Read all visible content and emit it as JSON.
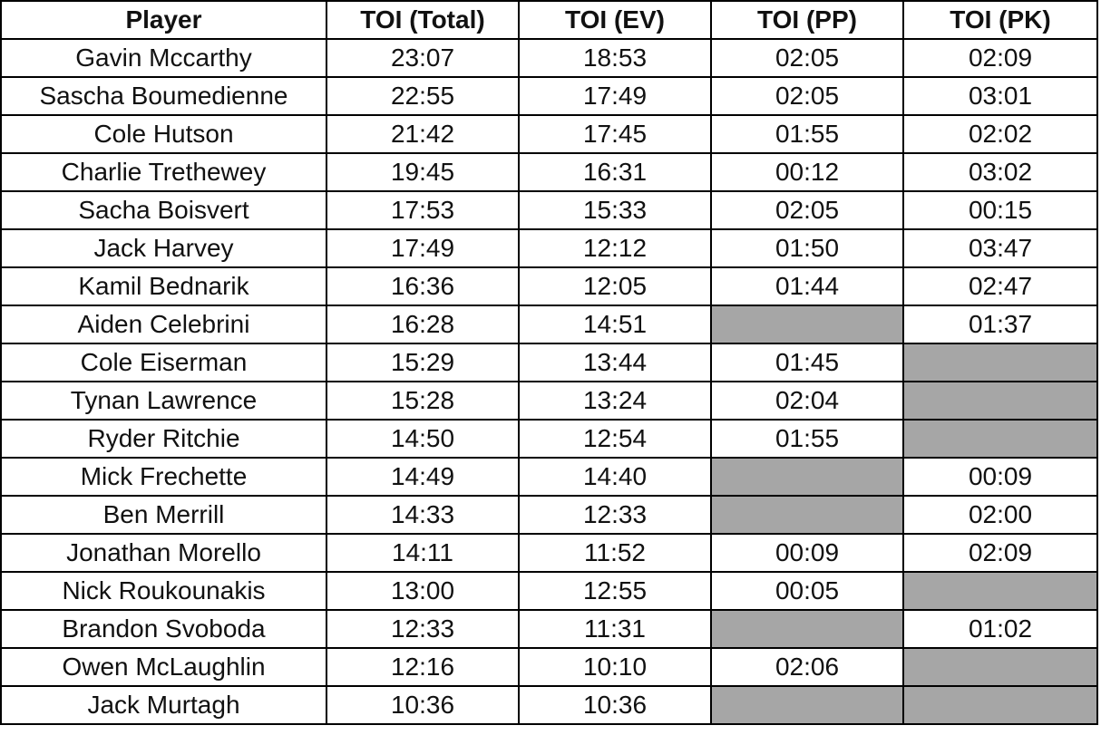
{
  "table": {
    "header": [
      "Player",
      "TOI (Total)",
      "TOI (EV)",
      "TOI (PP)",
      "TOI (PK)"
    ],
    "rows": [
      [
        "Gavin Mccarthy",
        "23:07",
        "18:53",
        "02:05",
        "02:09"
      ],
      [
        "Sascha Boumedienne",
        "22:55",
        "17:49",
        "02:05",
        "03:01"
      ],
      [
        "Cole Hutson",
        "21:42",
        "17:45",
        "01:55",
        "02:02"
      ],
      [
        "Charlie Trethewey",
        "19:45",
        "16:31",
        "00:12",
        "03:02"
      ],
      [
        "Sacha Boisvert",
        "17:53",
        "15:33",
        "02:05",
        "00:15"
      ],
      [
        "Jack Harvey",
        "17:49",
        "12:12",
        "01:50",
        "03:47"
      ],
      [
        "Kamil Bednarik",
        "16:36",
        "12:05",
        "01:44",
        "02:47"
      ],
      [
        "Aiden Celebrini",
        "16:28",
        "14:51",
        null,
        "01:37"
      ],
      [
        "Cole Eiserman",
        "15:29",
        "13:44",
        "01:45",
        null
      ],
      [
        "Tynan Lawrence",
        "15:28",
        "13:24",
        "02:04",
        null
      ],
      [
        "Ryder Ritchie",
        "14:50",
        "12:54",
        "01:55",
        null
      ],
      [
        "Mick Frechette",
        "14:49",
        "14:40",
        null,
        "00:09"
      ],
      [
        "Ben Merrill",
        "14:33",
        "12:33",
        null,
        "02:00"
      ],
      [
        "Jonathan Morello",
        "14:11",
        "11:52",
        "00:09",
        "02:09"
      ],
      [
        "Nick Roukounakis",
        "13:00",
        "12:55",
        "00:05",
        null
      ],
      [
        "Brandon Svoboda",
        "12:33",
        "11:31",
        null,
        "01:02"
      ],
      [
        "Owen McLaughlin",
        "12:16",
        "10:10",
        "02:06",
        null
      ],
      [
        "Jack Murtagh",
        "10:36",
        "10:36",
        null,
        null
      ]
    ]
  }
}
